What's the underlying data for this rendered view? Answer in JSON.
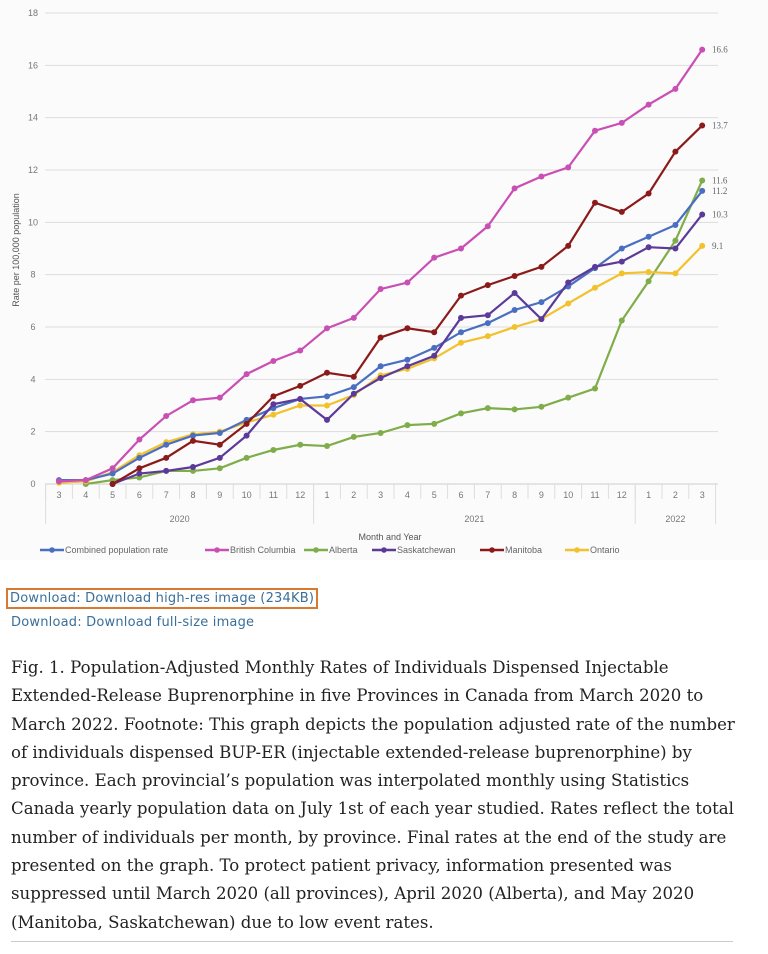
{
  "chart_data": {
    "type": "line",
    "ylabel": "Rate per 100,000 population",
    "xlabel": "Month and Year",
    "ylim": [
      0,
      18
    ],
    "yticks": [
      "0",
      "2",
      "4",
      "6",
      "8",
      "10",
      "12",
      "14",
      "16",
      "18"
    ],
    "grid": true,
    "legend": "bottom",
    "categories": [
      "3",
      "4",
      "5",
      "6",
      "7",
      "8",
      "9",
      "10",
      "11",
      "12",
      "1",
      "2",
      "3",
      "4",
      "5",
      "6",
      "7",
      "8",
      "9",
      "10",
      "11",
      "12",
      "1",
      "2",
      "3"
    ],
    "years": [
      {
        "label": "2020",
        "start": 0,
        "end": 9
      },
      {
        "label": "2021",
        "start": 10,
        "end": 21
      },
      {
        "label": "2022",
        "start": 22,
        "end": 24
      }
    ],
    "series": [
      {
        "name": "Combined population rate",
        "color": "#4a6fc0",
        "end_label": "11.2",
        "values": [
          0.15,
          0.15,
          0.4,
          1.0,
          1.5,
          1.85,
          1.95,
          2.45,
          2.9,
          3.25,
          3.35,
          3.7,
          4.5,
          4.75,
          5.2,
          5.8,
          6.15,
          6.65,
          6.95,
          7.55,
          8.25,
          9.0,
          9.45,
          9.9,
          11.2
        ]
      },
      {
        "name": "British Columbia",
        "color": "#c94fb4",
        "end_label": "16.6",
        "values": [
          0.1,
          0.15,
          0.6,
          1.7,
          2.6,
          3.2,
          3.3,
          4.2,
          4.7,
          5.1,
          5.95,
          6.35,
          7.45,
          7.7,
          8.65,
          9.0,
          9.85,
          11.3,
          11.75,
          12.1,
          13.5,
          13.8,
          14.5,
          15.1,
          16.6
        ]
      },
      {
        "name": "Alberta",
        "color": "#7fad4a",
        "end_label": "11.6",
        "values": [
          null,
          0.0,
          0.15,
          0.25,
          0.5,
          0.5,
          0.6,
          1.0,
          1.3,
          1.5,
          1.45,
          1.8,
          1.95,
          2.25,
          2.3,
          2.7,
          2.9,
          2.85,
          2.95,
          3.3,
          3.65,
          6.25,
          7.75,
          9.3,
          11.6
        ]
      },
      {
        "name": "Saskatchewan",
        "color": "#5b3a9a",
        "end_label": "10.3",
        "values": [
          null,
          null,
          0.0,
          0.4,
          0.5,
          0.65,
          1.0,
          1.85,
          3.05,
          3.25,
          2.45,
          3.45,
          4.05,
          4.5,
          4.9,
          6.35,
          6.45,
          7.3,
          6.3,
          7.7,
          8.3,
          8.5,
          9.05,
          9.0,
          10.3
        ]
      },
      {
        "name": "Manitoba",
        "color": "#8b1a1a",
        "end_label": "13.7",
        "values": [
          null,
          null,
          0.0,
          0.6,
          1.0,
          1.65,
          1.5,
          2.3,
          3.35,
          3.75,
          4.25,
          4.1,
          5.6,
          5.95,
          5.8,
          7.2,
          7.6,
          7.95,
          8.3,
          9.1,
          10.75,
          10.4,
          11.1,
          12.7,
          13.7
        ]
      },
      {
        "name": "Ontario",
        "color": "#f2c12e",
        "end_label": "9.1",
        "values": [
          0.05,
          0.1,
          0.45,
          1.1,
          1.6,
          1.9,
          2.0,
          2.35,
          2.65,
          3.0,
          3.0,
          3.4,
          4.15,
          4.4,
          4.8,
          5.4,
          5.65,
          6.0,
          6.3,
          6.9,
          7.5,
          8.05,
          8.1,
          8.05,
          9.1
        ]
      }
    ]
  },
  "links": {
    "highres": "Download: Download high-res image (234KB)",
    "fullsize": "Download: Download full-size image"
  },
  "caption": "Fig. 1. Population-Adjusted Monthly Rates of Individuals Dispensed Injectable Extended-Release Buprenorphine in five Provinces in Canada from March 2020 to March 2022. Footnote: This graph depicts the population adjusted rate of the number of individuals dispensed BUP-ER (injectable extended-release buprenorphine) by province. Each provincial’s population was interpolated monthly using Statistics Canada yearly population data on July 1st of each year studied. Rates reflect the total number of individuals per month, by province. Final rates at the end of the study are presented on the graph. To protect patient privacy, information presented was suppressed until March 2020 (all provinces), April 2020 (Alberta), and May 2020 (Manitoba, Saskatchewan) due to low event rates."
}
